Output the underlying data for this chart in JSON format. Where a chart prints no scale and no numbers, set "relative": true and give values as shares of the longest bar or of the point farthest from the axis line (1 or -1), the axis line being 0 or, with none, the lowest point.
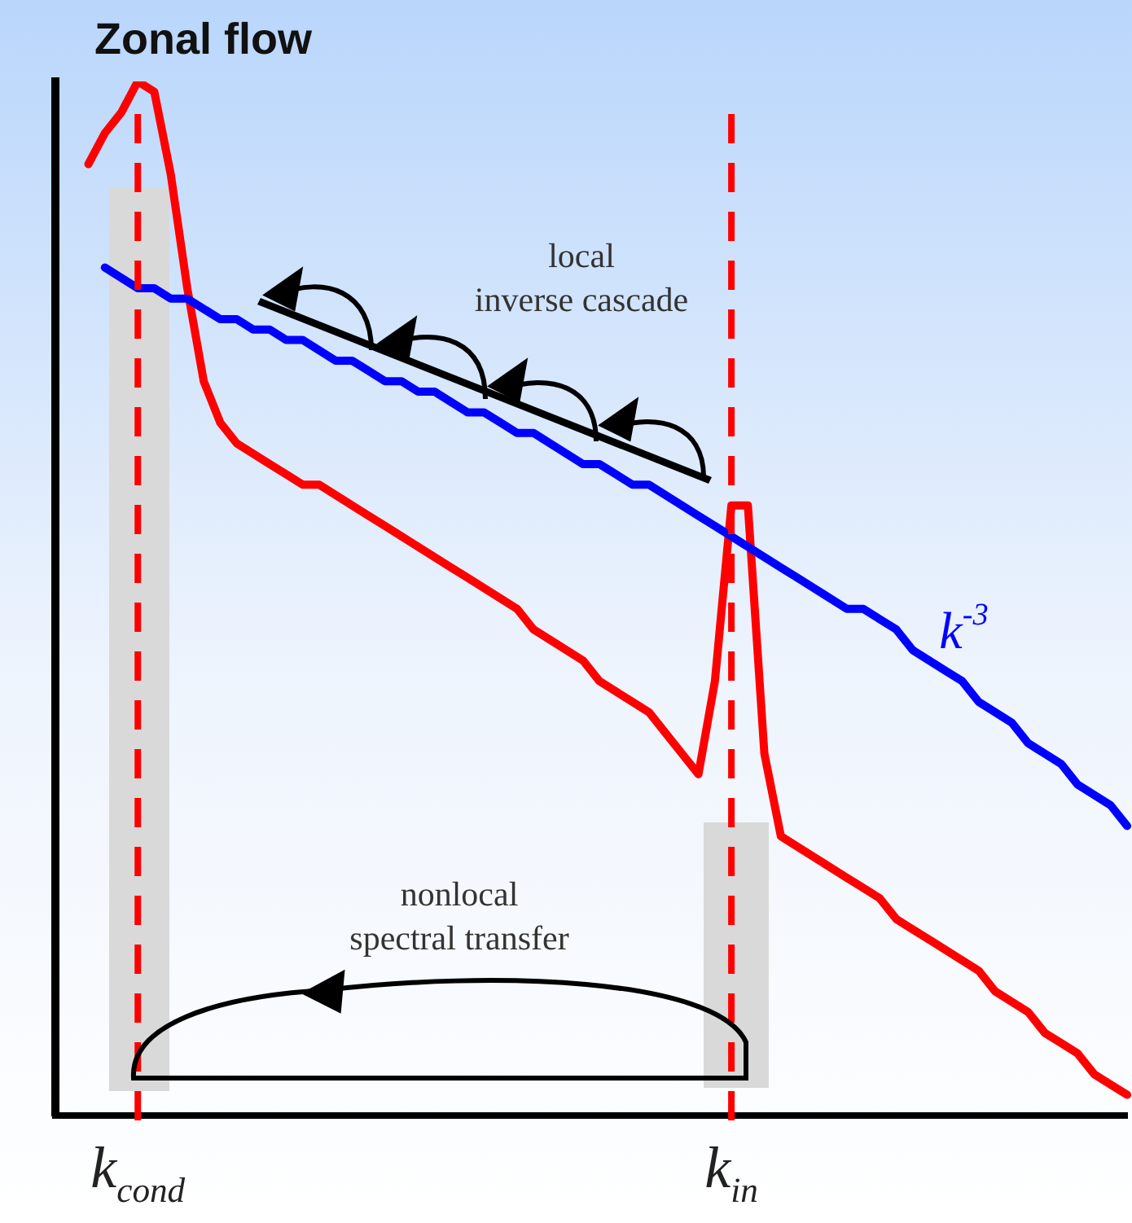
{
  "chart_data": {
    "type": "line",
    "title": "Zonal flow",
    "relative": true,
    "tick_labels": "x",
    "grid": false,
    "marker": "none",
    "categories": [
      null,
      null,
      null,
      null,
      null,
      "k$_{cond}$",
      null,
      null,
      null,
      null,
      null,
      null,
      null,
      null,
      null,
      null,
      null,
      null,
      null,
      null,
      null,
      null,
      null,
      null,
      null,
      null,
      null,
      null,
      null,
      null,
      null,
      null,
      null,
      null,
      null,
      null,
      null,
      null,
      null,
      null,
      null,
      "k$_{in}$",
      null,
      null,
      null,
      null,
      null,
      null,
      null,
      null,
      null,
      null,
      null,
      null,
      null,
      null,
      null,
      null,
      null,
      null,
      null,
      null,
      null,
      null,
      null,
      null
    ],
    "series": [
      {
        "name": "k$^{-3}$",
        "color": "#0000ff",
        "values": [
          null,
          null,
          null,
          0.82,
          0.81,
          0.8,
          0.8,
          0.79,
          0.79,
          0.78,
          0.77,
          0.77,
          0.76,
          0.76,
          0.75,
          0.75,
          0.74,
          0.73,
          0.73,
          0.72,
          0.71,
          0.71,
          0.7,
          0.7,
          0.69,
          0.68,
          0.68,
          0.67,
          0.66,
          0.66,
          0.65,
          0.64,
          0.63,
          0.63,
          0.62,
          0.61,
          0.61,
          0.6,
          0.59,
          0.58,
          0.57,
          0.56,
          0.55,
          0.54,
          0.53,
          0.52,
          0.51,
          0.5,
          0.49,
          0.49,
          0.48,
          0.47,
          0.45,
          0.44,
          0.43,
          0.42,
          0.4,
          0.39,
          0.38,
          0.36,
          0.35,
          0.34,
          0.32,
          0.31,
          0.3,
          0.28
        ]
      },
      {
        "color": "#ff0000",
        "values": [
          null,
          null,
          0.92,
          0.95,
          0.97,
          1.0,
          0.99,
          0.91,
          0.8,
          0.71,
          0.67,
          0.65,
          0.64,
          0.63,
          0.62,
          0.61,
          0.61,
          0.6,
          0.59,
          0.58,
          0.57,
          0.56,
          0.55,
          0.54,
          0.53,
          0.52,
          0.51,
          0.5,
          0.49,
          0.47,
          0.46,
          0.45,
          0.44,
          0.42,
          0.41,
          0.4,
          0.39,
          0.37,
          0.35,
          0.33,
          0.42,
          0.59,
          0.59,
          0.35,
          0.27,
          0.26,
          0.25,
          0.24,
          0.23,
          0.22,
          0.21,
          0.19,
          0.18,
          0.17,
          0.16,
          0.15,
          0.14,
          0.12,
          0.11,
          0.1,
          0.08,
          0.07,
          0.06,
          0.04,
          0.03,
          0.02
        ]
      }
    ],
    "ref_lines": [
      {
        "axis": "x",
        "value": "k$_{cond}$",
        "color": "#ff0000",
        "line_style": "dashed"
      },
      {
        "axis": "x",
        "value": "k$_{in}$",
        "color": "#ff0000",
        "line_style": "dashed"
      }
    ],
    "annotations": [
      "local\ninverse cascade",
      "nonlocal\nspectral transfer"
    ]
  }
}
